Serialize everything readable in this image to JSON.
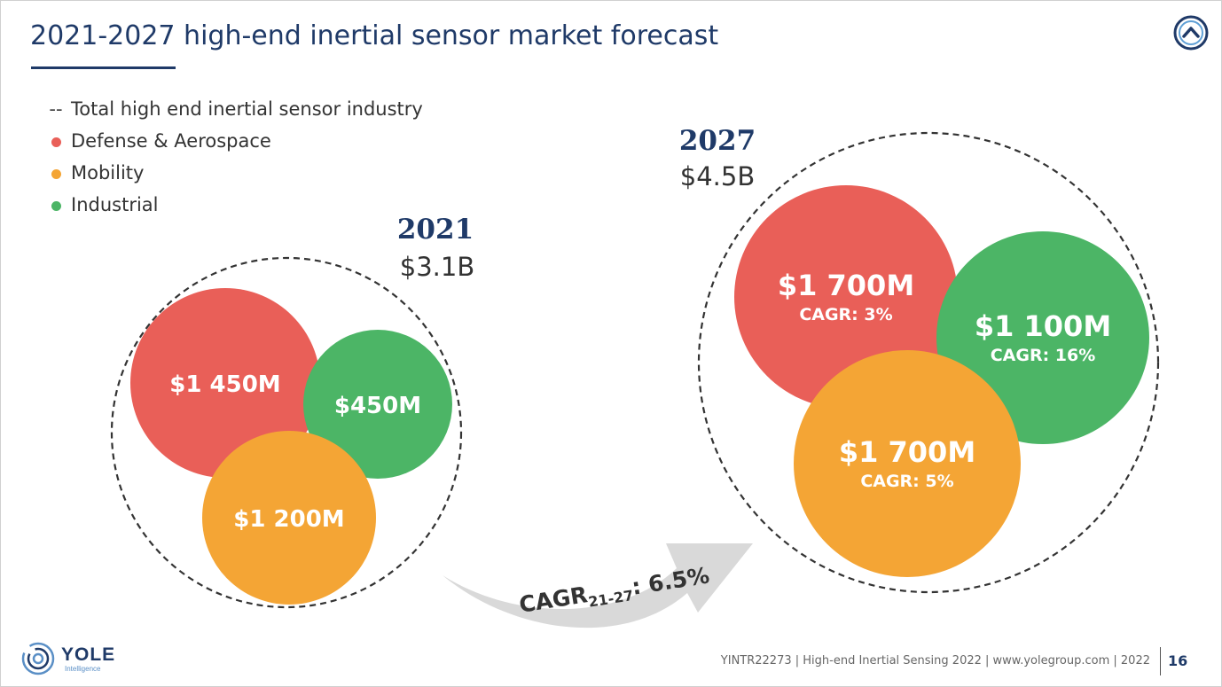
{
  "title": "2021-2027 high-end inertial sensor market forecast",
  "legend": [
    {
      "marker": "--",
      "label": "Total high end inertial sensor industry",
      "color": "#444444"
    },
    {
      "marker": "dot",
      "label": "Defense & Aerospace",
      "color": "#e95f58"
    },
    {
      "marker": "dot",
      "label": "Mobility",
      "color": "#f4a535"
    },
    {
      "marker": "dot",
      "label": "Industrial",
      "color": "#4cb566"
    }
  ],
  "chart_data": {
    "type": "bubble",
    "title": "2021-2027 high-end inertial sensor market forecast",
    "units": "USD",
    "growth_label": "CAGR",
    "growth_subscript": "21-27",
    "growth_value": ": 6.5%",
    "groups": [
      {
        "year": "2021",
        "total_label": "$3.1B",
        "total_value_musd": 3100,
        "segments": [
          {
            "name": "Defense & Aerospace",
            "label": "$1 450M",
            "value_musd": 1450,
            "cagr": null,
            "color": "#e95f58"
          },
          {
            "name": "Industrial",
            "label": "$450M",
            "value_musd": 450,
            "cagr": null,
            "color": "#4cb566"
          },
          {
            "name": "Mobility",
            "label": "$1 200M",
            "value_musd": 1200,
            "cagr": null,
            "color": "#f4a535"
          }
        ]
      },
      {
        "year": "2027",
        "total_label": "$4.5B",
        "total_value_musd": 4500,
        "segments": [
          {
            "name": "Defense & Aerospace",
            "label": "$1 700M",
            "value_musd": 1700,
            "cagr": "CAGR: 3%",
            "color": "#e95f58"
          },
          {
            "name": "Industrial",
            "label": "$1 100M",
            "value_musd": 1100,
            "cagr": "CAGR: 16%",
            "color": "#4cb566"
          },
          {
            "name": "Mobility",
            "label": "$1 700M",
            "value_musd": 1700,
            "cagr": "CAGR: 5%",
            "color": "#f4a535"
          }
        ]
      }
    ]
  },
  "footer": {
    "text": "YINTR22273 | High-end Inertial Sensing 2022 | www.yolegroup.com | 2022",
    "page": "16"
  },
  "logo": {
    "name": "YOLE",
    "sub": "Intelligence"
  },
  "colors": {
    "navy": "#1f3a68",
    "defense": "#e95f58",
    "mobility": "#f4a535",
    "industrial": "#4cb566"
  }
}
